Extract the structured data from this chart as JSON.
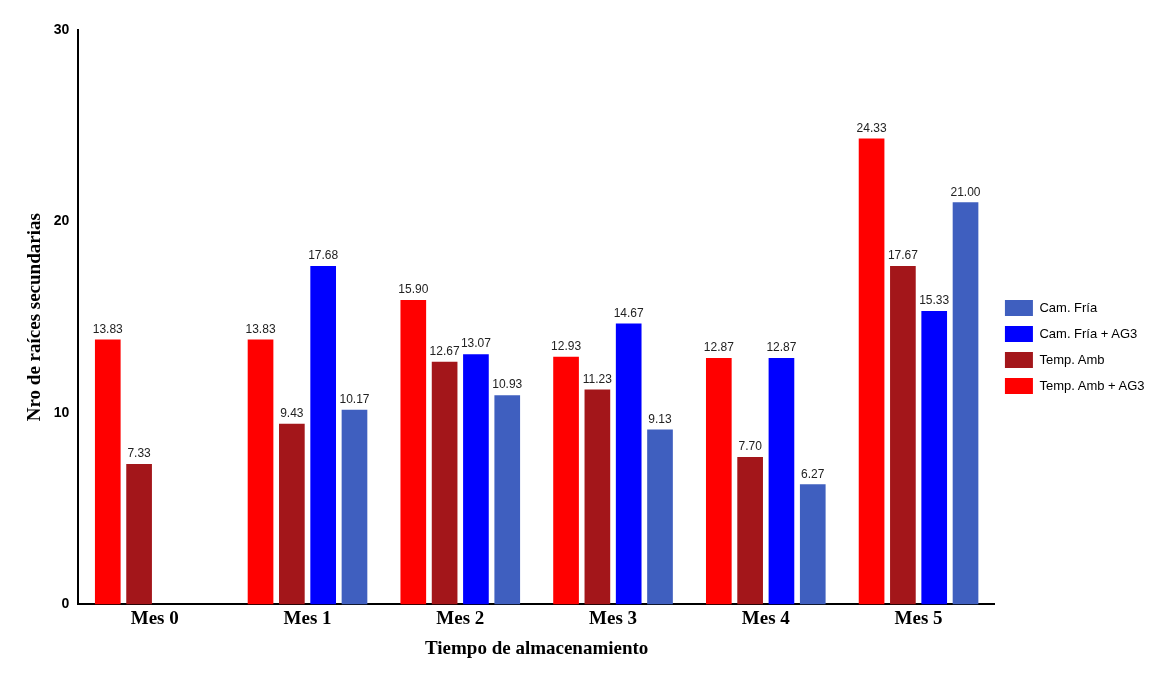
{
  "chart_data": {
    "type": "bar",
    "xlabel": "Tiempo de almacenamiento",
    "ylabel": "Nro de raíces secundarias",
    "categories": [
      "Mes 0",
      "Mes 1",
      "Mes 2",
      "Mes 3",
      "Mes 4",
      "Mes 5"
    ],
    "series": [
      {
        "name": "Temp. Amb + AG3",
        "color": "#ff0000",
        "values": [
          13.83,
          13.83,
          15.9,
          12.93,
          12.87,
          24.33
        ],
        "value_labels": [
          "13.83",
          "13.83",
          "15.90",
          "12.93",
          "12.87",
          "24.33"
        ]
      },
      {
        "name": "Temp. Amb",
        "color": "#a3161a",
        "values": [
          7.33,
          9.43,
          12.67,
          11.23,
          7.7,
          17.67
        ],
        "value_labels": [
          "7.33",
          "9.43",
          "12.67",
          "11.23",
          "7.70",
          "17.67"
        ]
      },
      {
        "name": "Cam. Fría + AG3",
        "color": "#0000ff",
        "values": [
          null,
          17.68,
          13.07,
          14.67,
          12.87,
          15.33
        ],
        "value_labels": [
          null,
          "17.68",
          "13.07",
          "14.67",
          "12.87",
          "15.33"
        ]
      },
      {
        "name": "Cam. Fría",
        "color": "#3f5fbf",
        "values": [
          null,
          10.17,
          10.93,
          9.13,
          6.27,
          21.0
        ],
        "value_labels": [
          null,
          "10.17",
          "10.93",
          "9.13",
          "6.27",
          "21.00"
        ]
      }
    ],
    "ylim": [
      0,
      30
    ],
    "yticks": [
      0,
      10,
      20,
      30
    ],
    "grid": false,
    "legend": "right"
  }
}
